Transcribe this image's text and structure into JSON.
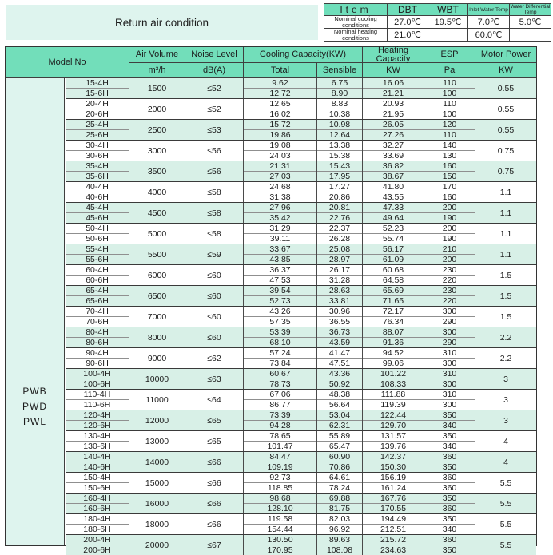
{
  "title": "Return air condition",
  "colors": {
    "header_green": "#72deba",
    "mini_header_green": "#6fdeba",
    "row_mint": "#d8f0e7",
    "panel_mint": "#def4ee",
    "border_dark": "#3a3a3a"
  },
  "conditions_table": {
    "headers": [
      "Item",
      "DBT",
      "WBT",
      "Inlet Water Temp",
      "Water Differential Temp"
    ],
    "rows": [
      {
        "label": "Nominal cooling conditions",
        "values": [
          "27.0℃",
          "19.5℃",
          "7.0℃",
          "5.0℃"
        ]
      },
      {
        "label": "Nominal heating conditions",
        "values": [
          "21.0℃",
          "",
          "60.0℃",
          ""
        ]
      }
    ]
  },
  "main_table": {
    "model_series": [
      "PWB",
      "PWD",
      "PWL"
    ],
    "headers": {
      "model_no": "Model No",
      "air_volume": "Air Volume",
      "air_volume_unit": "m³/h",
      "noise": "Noise Level",
      "noise_unit": "dB(A)",
      "cooling": "Cooling Capacity(KW)",
      "cooling_total": "Total",
      "cooling_sensible": "Sensible",
      "heating": "Heating Capacity",
      "heating_unit": "KW",
      "esp": "ESP",
      "esp_unit": "Pa",
      "motor": "Motor Power",
      "motor_unit": "KW"
    },
    "groups": [
      {
        "models": [
          "15-4H",
          "15-6H"
        ],
        "air_volume": "1500",
        "noise": "≤52",
        "total": [
          "9.62",
          "12.72"
        ],
        "sensible": [
          "6.75",
          "8.90"
        ],
        "heating": [
          "16.06",
          "21.21"
        ],
        "esp": [
          "110",
          "100"
        ],
        "motor": "0.55"
      },
      {
        "models": [
          "20-4H",
          "20-6H"
        ],
        "air_volume": "2000",
        "noise": "≤52",
        "total": [
          "12.65",
          "16.02"
        ],
        "sensible": [
          "8.83",
          "10.38"
        ],
        "heating": [
          "20.93",
          "21.95"
        ],
        "esp": [
          "110",
          "100"
        ],
        "motor": "0.55"
      },
      {
        "models": [
          "25-4H",
          "25-6H"
        ],
        "air_volume": "2500",
        "noise": "≤53",
        "total": [
          "15.72",
          "19.86"
        ],
        "sensible": [
          "10.98",
          "12.64"
        ],
        "heating": [
          "26.05",
          "27.26"
        ],
        "esp": [
          "120",
          "110"
        ],
        "motor": "0.55"
      },
      {
        "models": [
          "30-4H",
          "30-6H"
        ],
        "air_volume": "3000",
        "noise": "≤56",
        "total": [
          "19.08",
          "24.03"
        ],
        "sensible": [
          "13.38",
          "15.38"
        ],
        "heating": [
          "32.27",
          "33.69"
        ],
        "esp": [
          "140",
          "130"
        ],
        "motor": "0.75"
      },
      {
        "models": [
          "35-4H",
          "35-6H"
        ],
        "air_volume": "3500",
        "noise": "≤56",
        "total": [
          "21.31",
          "27.03"
        ],
        "sensible": [
          "15.43",
          "17.95"
        ],
        "heating": [
          "36.82",
          "38.67"
        ],
        "esp": [
          "160",
          "150"
        ],
        "motor": "0.75"
      },
      {
        "models": [
          "40-4H",
          "40-6H"
        ],
        "air_volume": "4000",
        "noise": "≤58",
        "total": [
          "24.68",
          "31.38"
        ],
        "sensible": [
          "17.27",
          "20.86"
        ],
        "heating": [
          "41.80",
          "43.55"
        ],
        "esp": [
          "170",
          "160"
        ],
        "motor": "1.1"
      },
      {
        "models": [
          "45-4H",
          "45-6H"
        ],
        "air_volume": "4500",
        "noise": "≤58",
        "total": [
          "27.96",
          "35.42"
        ],
        "sensible": [
          "20.81",
          "22.76"
        ],
        "heating": [
          "47.33",
          "49.64"
        ],
        "esp": [
          "200",
          "190"
        ],
        "motor": "1.1"
      },
      {
        "models": [
          "50-4H",
          "50-6H"
        ],
        "air_volume": "5000",
        "noise": "≤58",
        "total": [
          "31.29",
          "39.11"
        ],
        "sensible": [
          "22.37",
          "26.28"
        ],
        "heating": [
          "52.23",
          "55.74"
        ],
        "esp": [
          "200",
          "190"
        ],
        "motor": "1.1"
      },
      {
        "models": [
          "55-4H",
          "55-6H"
        ],
        "air_volume": "5500",
        "noise": "≤59",
        "total": [
          "33.67",
          "43.85"
        ],
        "sensible": [
          "25.08",
          "28.97"
        ],
        "heating": [
          "56.17",
          "61.09"
        ],
        "esp": [
          "210",
          "200"
        ],
        "motor": "1.1"
      },
      {
        "models": [
          "60-4H",
          "60-6H"
        ],
        "air_volume": "6000",
        "noise": "≤60",
        "total": [
          "36.37",
          "47.53"
        ],
        "sensible": [
          "26.17",
          "31.28"
        ],
        "heating": [
          "60.68",
          "64.58"
        ],
        "esp": [
          "230",
          "220"
        ],
        "motor": "1.5"
      },
      {
        "models": [
          "65-4H",
          "65-6H"
        ],
        "air_volume": "6500",
        "noise": "≤60",
        "total": [
          "39.54",
          "52.73"
        ],
        "sensible": [
          "28.63",
          "33.81"
        ],
        "heating": [
          "65.69",
          "71.65"
        ],
        "esp": [
          "230",
          "220"
        ],
        "motor": "1.5"
      },
      {
        "models": [
          "70-4H",
          "70-6H"
        ],
        "air_volume": "7000",
        "noise": "≤60",
        "total": [
          "43.26",
          "57.35"
        ],
        "sensible": [
          "30.96",
          "36.55"
        ],
        "heating": [
          "72.17",
          "76.34"
        ],
        "esp": [
          "300",
          "290"
        ],
        "motor": "1.5"
      },
      {
        "models": [
          "80-4H",
          "80-6H"
        ],
        "air_volume": "8000",
        "noise": "≤60",
        "total": [
          "53.39",
          "68.10"
        ],
        "sensible": [
          "36.73",
          "43.59"
        ],
        "heating": [
          "88.07",
          "91.36"
        ],
        "esp": [
          "300",
          "290"
        ],
        "motor": "2.2"
      },
      {
        "models": [
          "90-4H",
          "90-6H"
        ],
        "air_volume": "9000",
        "noise": "≤62",
        "total": [
          "57.24",
          "73.84"
        ],
        "sensible": [
          "41.47",
          "47.51"
        ],
        "heating": [
          "94.52",
          "99.06"
        ],
        "esp": [
          "310",
          "300"
        ],
        "motor": "2.2"
      },
      {
        "models": [
          "100-4H",
          "100-6H"
        ],
        "air_volume": "10000",
        "noise": "≤63",
        "total": [
          "60.67",
          "78.73"
        ],
        "sensible": [
          "43.36",
          "50.92"
        ],
        "heating": [
          "101.22",
          "108.33"
        ],
        "esp": [
          "310",
          "300"
        ],
        "motor": "3"
      },
      {
        "models": [
          "110-4H",
          "110-6H"
        ],
        "air_volume": "11000",
        "noise": "≤64",
        "total": [
          "67.06",
          "86.77"
        ],
        "sensible": [
          "48.38",
          "56.64"
        ],
        "heating": [
          "111.88",
          "119.39"
        ],
        "esp": [
          "310",
          "300"
        ],
        "motor": "3"
      },
      {
        "models": [
          "120-4H",
          "120-6H"
        ],
        "air_volume": "12000",
        "noise": "≤65",
        "total": [
          "73.39",
          "94.28"
        ],
        "sensible": [
          "53.04",
          "62.31"
        ],
        "heating": [
          "122.44",
          "129.70"
        ],
        "esp": [
          "350",
          "340"
        ],
        "motor": "3"
      },
      {
        "models": [
          "130-4H",
          "130-6H"
        ],
        "air_volume": "13000",
        "noise": "≤65",
        "total": [
          "78.65",
          "101.47"
        ],
        "sensible": [
          "55.89",
          "65.47"
        ],
        "heating": [
          "131.57",
          "139.76"
        ],
        "esp": [
          "350",
          "340"
        ],
        "motor": "4"
      },
      {
        "models": [
          "140-4H",
          "140-6H"
        ],
        "air_volume": "14000",
        "noise": "≤66",
        "total": [
          "84.47",
          "109.19"
        ],
        "sensible": [
          "60.90",
          "70.86"
        ],
        "heating": [
          "142.37",
          "150.30"
        ],
        "esp": [
          "360",
          "350"
        ],
        "motor": "4"
      },
      {
        "models": [
          "150-4H",
          "150-6H"
        ],
        "air_volume": "15000",
        "noise": "≤66",
        "total": [
          "92.73",
          "118.85"
        ],
        "sensible": [
          "64.61",
          "78.24"
        ],
        "heating": [
          "156.19",
          "161.24"
        ],
        "esp": [
          "360",
          "360"
        ],
        "motor": "5.5"
      },
      {
        "models": [
          "160-4H",
          "160-6H"
        ],
        "air_volume": "16000",
        "noise": "≤66",
        "total": [
          "98.68",
          "128.10"
        ],
        "sensible": [
          "69.88",
          "81.75"
        ],
        "heating": [
          "167.76",
          "170.55"
        ],
        "esp": [
          "350",
          "360"
        ],
        "motor": "5.5"
      },
      {
        "models": [
          "180-4H",
          "180-6H"
        ],
        "air_volume": "18000",
        "noise": "≤66",
        "total": [
          "119.58",
          "154.44"
        ],
        "sensible": [
          "82.03",
          "96.92"
        ],
        "heating": [
          "194.49",
          "212.51"
        ],
        "esp": [
          "350",
          "340"
        ],
        "motor": "5.5"
      },
      {
        "models": [
          "200-4H",
          "200-6H"
        ],
        "air_volume": "20000",
        "noise": "≤67",
        "total": [
          "130.50",
          "170.95"
        ],
        "sensible": [
          "89.63",
          "108.08"
        ],
        "heating": [
          "215.72",
          "234.63"
        ],
        "esp": [
          "360",
          "350"
        ],
        "motor": "5.5"
      }
    ]
  }
}
